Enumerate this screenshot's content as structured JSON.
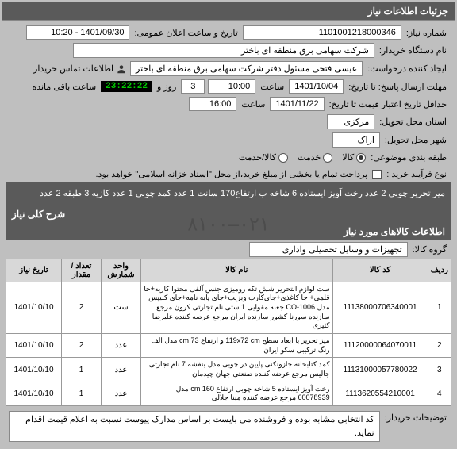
{
  "header": {
    "title": "جزئیات اطلاعات نیاز"
  },
  "info": {
    "need_no_label": "شماره نیاز:",
    "need_no": "1101001218000346",
    "announce_label": "تاریخ و ساعت اعلان عمومی:",
    "announce_value": "1401/09/30 - 10:20",
    "buyer_label": "نام دستگاه خریدار:",
    "buyer": "شرکت سهامی برق منطقه ای باختر",
    "creator_label": "ایجاد کننده درخواست:",
    "creator": "عیسی فتحی مسئول دفتر شرکت سهامی برق منطقه ای باختر",
    "contact_label": "اطلاعات تماس خریدار",
    "deadline_label": "مهلت ارسال پاسخ: تا تاریخ:",
    "deadline_date": "1401/10/04",
    "time_label": "ساعت",
    "deadline_time": "10:00",
    "days_label": "روز و",
    "days_value": "3",
    "countdown": "23:22:22",
    "remaining_label": "ساعت باقی مانده",
    "validity_label": "حداقل تاریخ اعتبار قیمت تا تاریخ:",
    "validity_date": "1401/11/22",
    "validity_time": "16:00",
    "province_label": "استان محل تحویل:",
    "province": "مرکزی",
    "city_label": "شهر محل تحویل:",
    "city": "اراک",
    "ratio_label": "طبقه بندی موضوعی:",
    "ratio_options": [
      "کالا",
      "خدمت",
      "کالا/خدمت"
    ],
    "process_label": "نوع فرآیند خرید :",
    "process_note": "پرداخت تمام یا بخشی از مبلغ خرید،از محل \"اسناد خزانه اسلامی\" خواهد بود.",
    "desc_label": "شرح کلی نیاز",
    "desc": "میز تحریر چوبی 2 عدد رخت آویز ایستاده 6 شاخه ب ارتفاع170 سانت 1 عدد کمد چوبی 1 عدد کازیه 3 طبقه 2 عدد"
  },
  "goods_section": {
    "title": "اطلاعات کالاهای مورد نیاز",
    "group_label": "گروه کالا:",
    "group_value": "تجهیزات و وسایل تحصیلی واداری"
  },
  "table": {
    "headers": [
      "ردیف",
      "کد کالا",
      "نام کالا",
      "واحد شمارش",
      "تعداد / مقدار",
      "تاریخ نیاز"
    ],
    "rows": [
      {
        "idx": "1",
        "code": "1113800070634000​1",
        "name": "ست لوازم التحریر شش تکه رومیزی جنس آلفی محتوا کازیه+جا قلمی+ جا کاغذی+جای‌کارت ویزیت+جای پایه نامه+جای کلیپس مدل CO-1006 جعبه مقوایی 1 ستی نام تجارتی کرون مرجع سازنده سورنا کشور سازنده ایران مرجع عرضه کننده علیرضا کثیری",
        "unit": "ست",
        "qty": "2",
        "date": "1401/10/10"
      },
      {
        "idx": "2",
        "code": "1112000006407001​1",
        "name": "میز تحریر با ابعاد سطح 119x72 cm و ارتفاع 73 cm مدل الف رنگ ترکیبی سکو ایران",
        "unit": "عدد",
        "qty": "2",
        "date": "1401/10/10"
      },
      {
        "idx": "3",
        "code": "1113100005778002​2",
        "name": "کمد کتابخانه جازونکنی پایین در چوبی مدل بنفشه 7 نام تجارتی جالیس مرجع عرضه کننده صنعتی جهان چیدمان",
        "unit": "عدد",
        "qty": "1",
        "date": "1401/10/10"
      },
      {
        "idx": "4",
        "code": "1113620554210001",
        "name": "رخت آویز ایستاده 5 شاخه چوبی ارتفاع 160 cm مدل 60078939 مرجع عرضه کننده مینا جلالی",
        "unit": "عدد",
        "qty": "1",
        "date": "1401/10/10"
      }
    ]
  },
  "notes": {
    "label": "توضیحات خریدار:",
    "text": "کد انتخابی مشابه بوده و فروشنده می بایست بر اساس مدارک پیوست نسبت به اعلام قیمت اقدام نماید."
  },
  "watermark": "۰۲۱–۸۱۰۰"
}
